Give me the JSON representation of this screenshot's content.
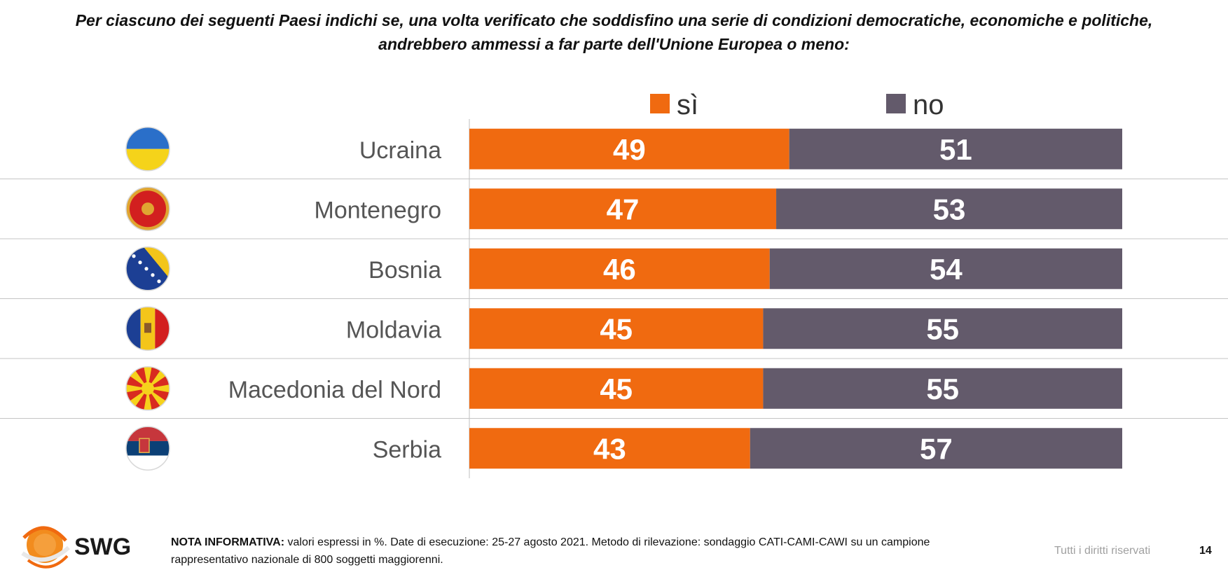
{
  "title": {
    "line1": "Per ciascuno dei seguenti Paesi indichi se, una volta verificato che soddisfino una serie di condizioni democratiche, economiche e politiche,",
    "line2": "andrebbero ammessi a far parte dell'Unione Europea o meno:"
  },
  "chart_data": {
    "type": "bar",
    "orientation": "horizontal",
    "stacked": true,
    "unit": "%",
    "categories": [
      "Ucraina",
      "Montenegro",
      "Bosnia",
      "Moldavia",
      "Macedonia del Nord",
      "Serbia"
    ],
    "series": [
      {
        "name": "sì",
        "color": "#f06a10",
        "values": [
          49,
          47,
          46,
          45,
          45,
          43
        ]
      },
      {
        "name": "no",
        "color": "#635a6b",
        "values": [
          51,
          53,
          54,
          55,
          55,
          57
        ]
      }
    ],
    "xlim": [
      0,
      100
    ],
    "legend_position": "top",
    "grid": false,
    "flags": [
      "ukraine-flag-icon",
      "montenegro-flag-icon",
      "bosnia-flag-icon",
      "moldova-flag-icon",
      "north-macedonia-flag-icon",
      "serbia-flag-icon"
    ]
  },
  "footer": {
    "logo_text": "SWG",
    "nota_lead": "NOTA INFORMATIVA:",
    "nota_text": " valori espressi in %. Date di esecuzione: 25-27 agosto 2021. Metodo di rilevazione: sondaggio CATI-CAMI-CAWI su un campione rappresentativo nazionale di 800 soggetti maggiorenni.",
    "rights": "Tutti i diritti riservati",
    "page_number": "14"
  }
}
